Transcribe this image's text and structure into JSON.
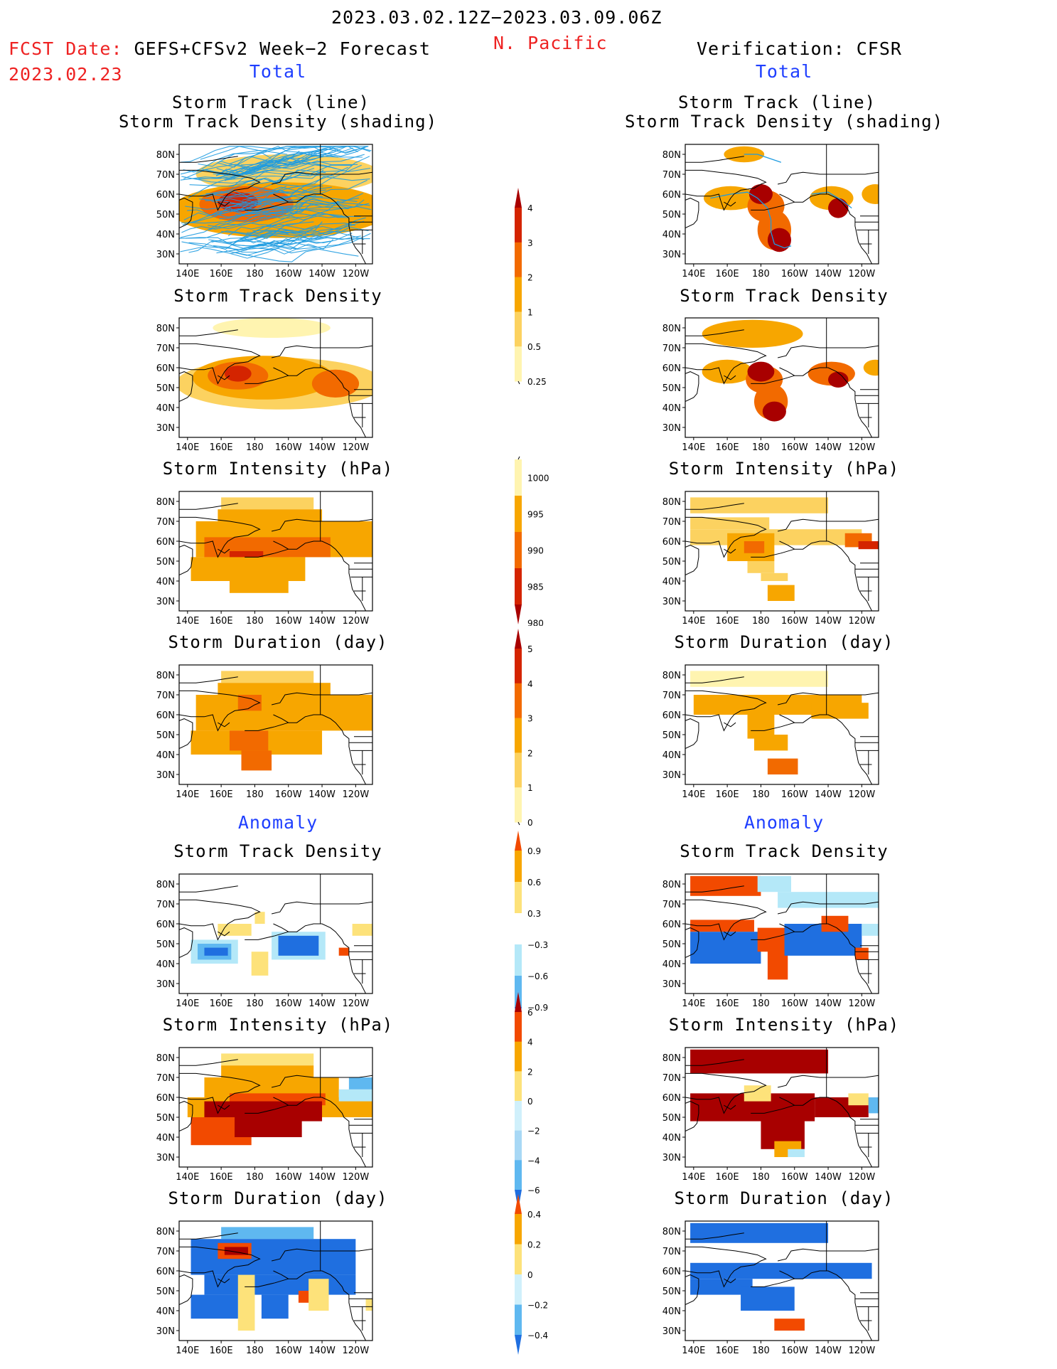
{
  "header": {
    "date_range": "2023.03.02.12Z−2023.03.09.06Z",
    "region": "N. Pacific",
    "fcst_label": "FCST Date:",
    "fcst_model": "GEFS+CFSv2 Week−2 Forecast",
    "fcst_date": "2023.02.23",
    "verification": "Verification: CFSR"
  },
  "sections": {
    "total_left": "Total",
    "total_right": "Total",
    "anomaly_left": "Anomaly",
    "anomaly_right": "Anomaly"
  },
  "panel_titles": {
    "track_line": "Storm Track (line)",
    "track_shading": "Storm Track Density (shading)",
    "density": "Storm Track Density",
    "intensity": "Storm Intensity (hPa)",
    "duration": "Storm Duration (day)"
  },
  "axes": {
    "lat_labels": [
      "80N",
      "70N",
      "60N",
      "50N",
      "40N",
      "30N"
    ],
    "lon_labels": [
      "140E",
      "160E",
      "180",
      "160W",
      "140W",
      "120W"
    ]
  },
  "colorbars": {
    "density": {
      "labels": [
        "4",
        "3",
        "2",
        "1",
        "0.5",
        "0.25"
      ],
      "colors": [
        "#a80000",
        "#d42400",
        "#f26a00",
        "#f7a600",
        "#fcd260",
        "#fff4b0"
      ]
    },
    "intensity": {
      "labels": [
        "1000",
        "995",
        "990",
        "985",
        "980"
      ],
      "colors": [
        "#fff4b0",
        "#f7a600",
        "#f26a00",
        "#d42400",
        "#a80000"
      ]
    },
    "duration": {
      "labels": [
        "5",
        "4",
        "3",
        "2",
        "1",
        "0"
      ],
      "colors": [
        "#a80000",
        "#d42400",
        "#f26a00",
        "#f7a600",
        "#fcd260",
        "#fff4b0"
      ]
    },
    "anom_density": {
      "labels": [
        "0.9",
        "0.6",
        "0.3",
        "−0.3",
        "−0.6",
        "−0.9"
      ],
      "colors": [
        "#f24a00",
        "#f7a600",
        "#fde27a",
        "#ffffff",
        "#b4e8f8",
        "#5fb8f0",
        "#1f6fe0"
      ]
    },
    "anom_intensity": {
      "labels": [
        "6",
        "4",
        "2",
        "0",
        "−2",
        "−4",
        "−6"
      ],
      "colors": [
        "#a80000",
        "#f24a00",
        "#f7a600",
        "#fde27a",
        "#d0f0fb",
        "#a8d8f5",
        "#5fb8f0",
        "#1f6fe0"
      ]
    },
    "anom_duration": {
      "labels": [
        "0.4",
        "0.2",
        "0",
        "−0.2",
        "−0.4"
      ],
      "colors": [
        "#f24a00",
        "#f7a600",
        "#fde27a",
        "#d0f0fb",
        "#5fb8f0",
        "#1f6fe0"
      ]
    }
  },
  "colors": {
    "track_line": "#1e9be0",
    "coast": "#000000",
    "title_red": "#ee2222",
    "section_blue": "#1f3fff"
  }
}
